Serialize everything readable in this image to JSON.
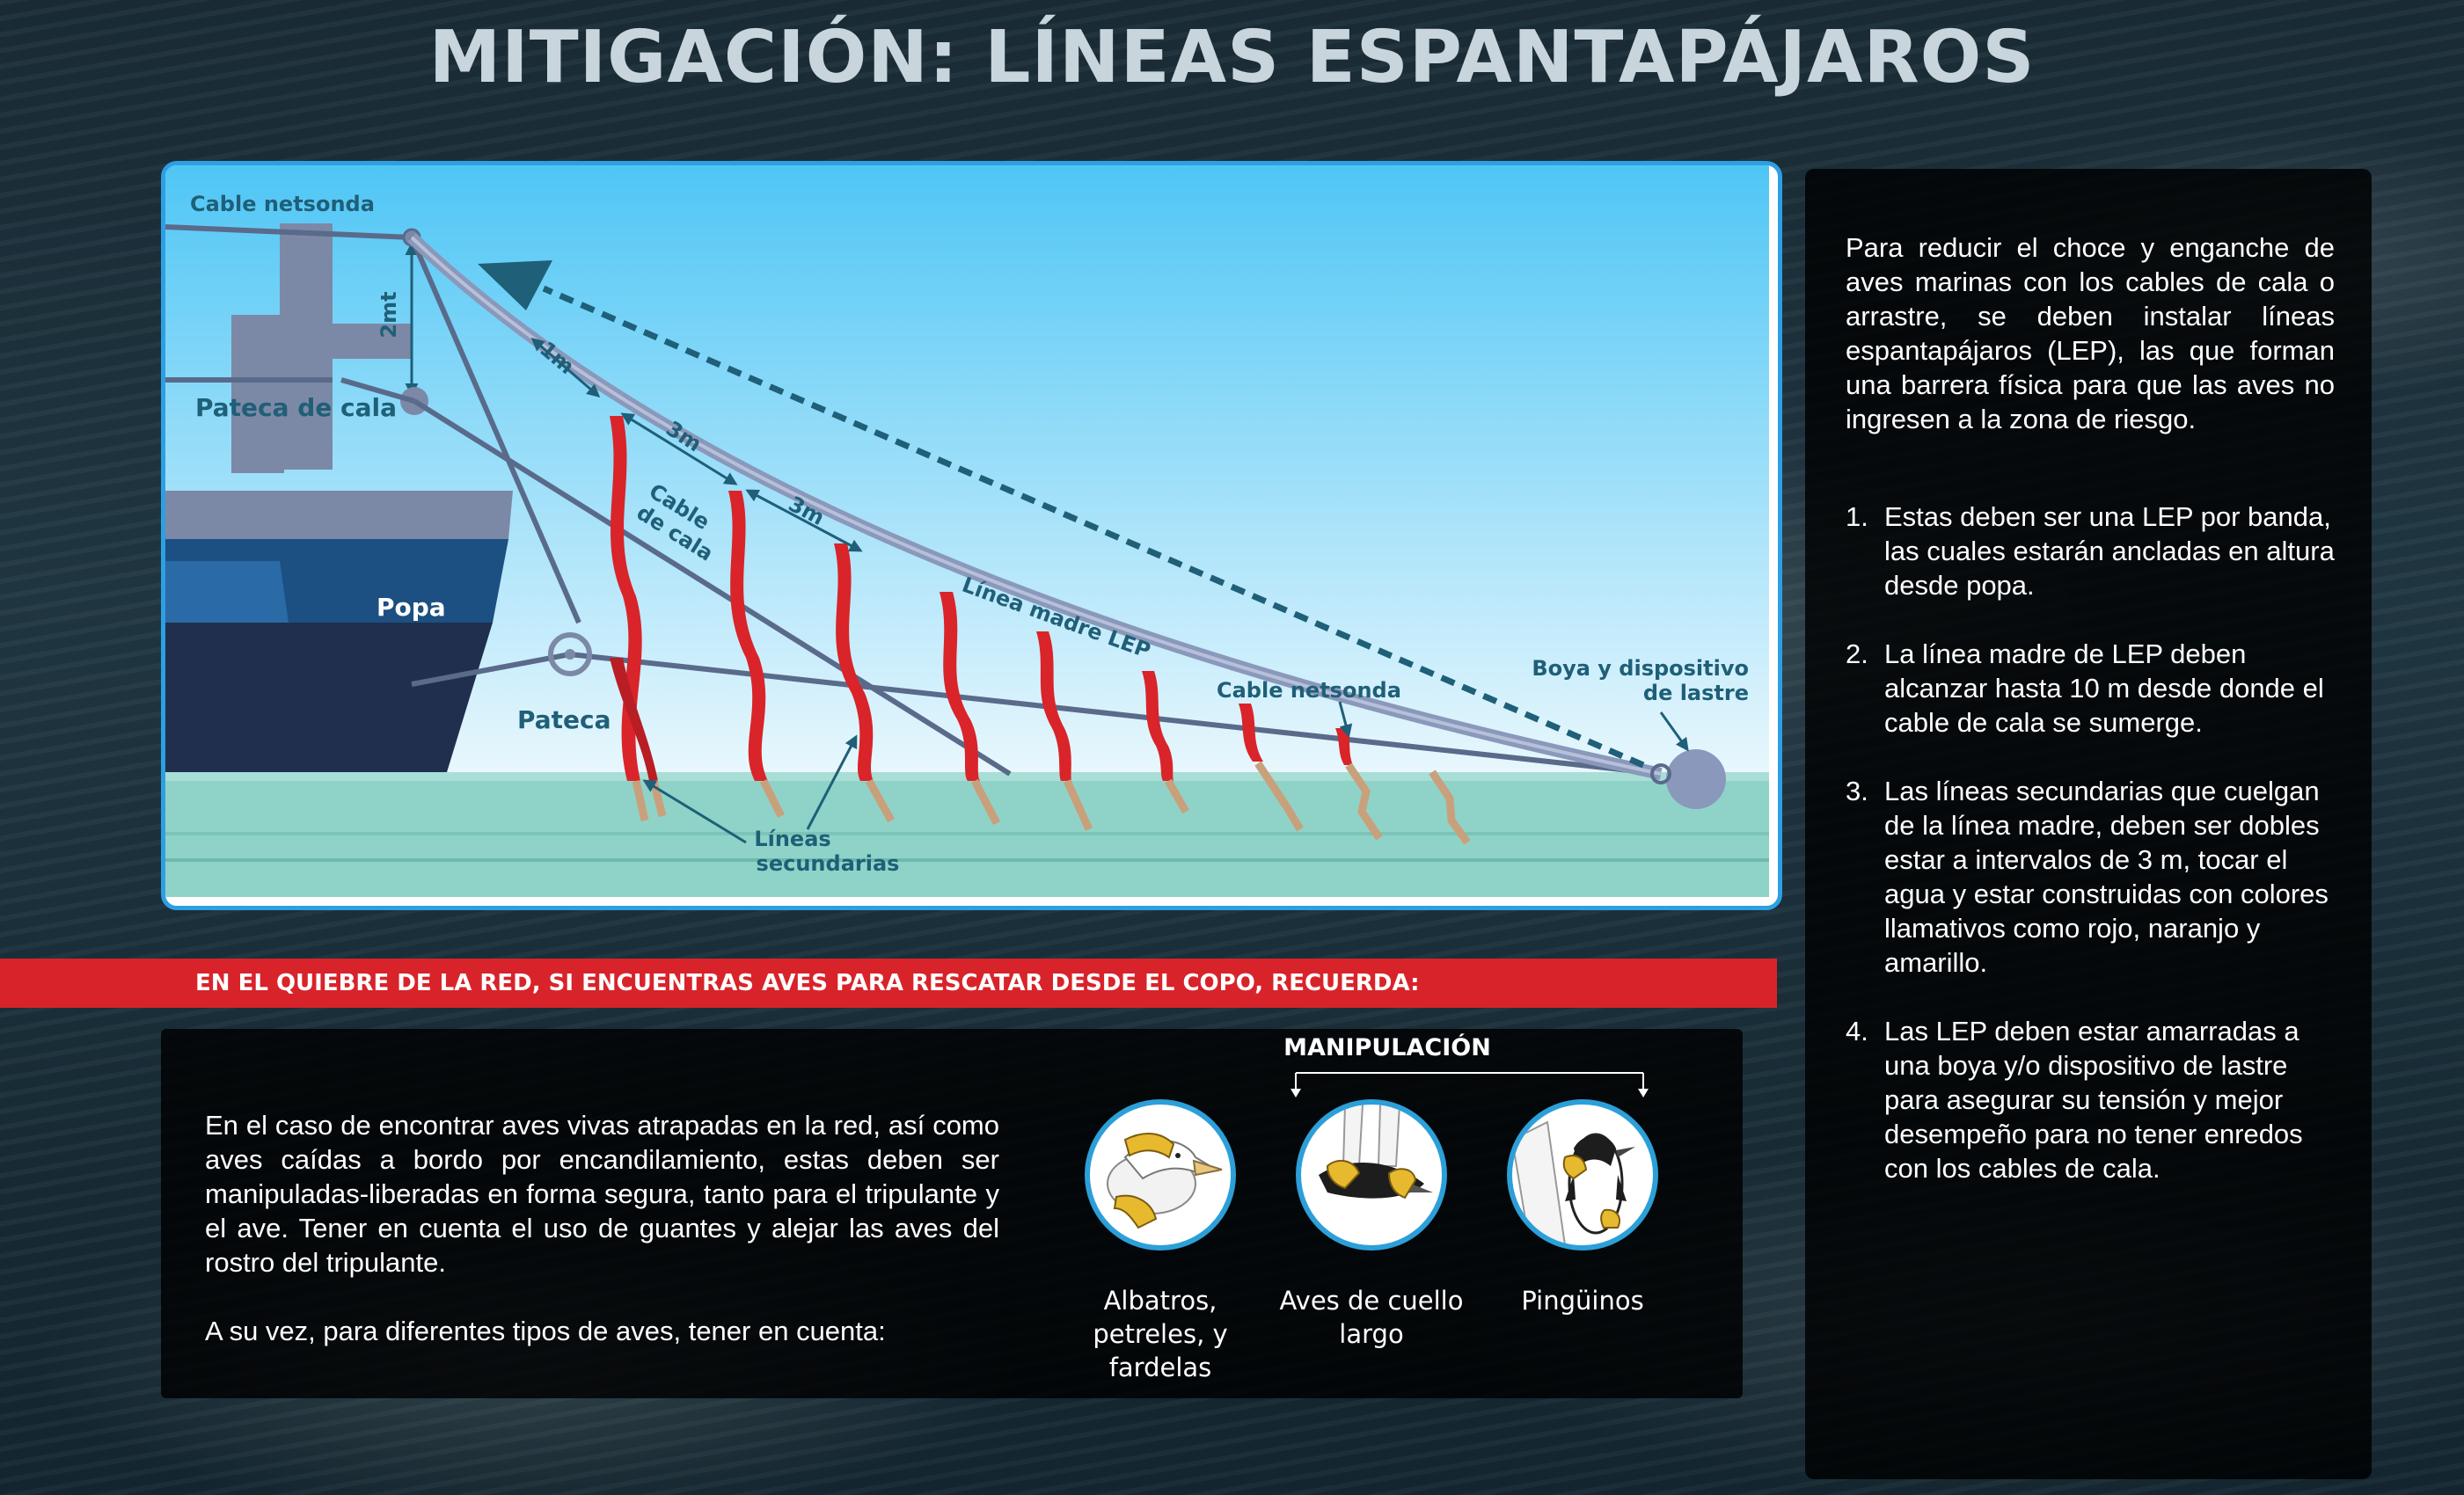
{
  "title": "MITIGACIÓN: LÍNEAS ESPANTAPÁJAROS",
  "diagram": {
    "labels": {
      "cable_netsonda_top": "Cable netsonda",
      "dim_2mt": "2mt",
      "pateca_de_cala": "Pateca de cala",
      "popa": "Popa",
      "pateca": "Pateca",
      "dim_1m": "1m",
      "dim_3m_a": "3m",
      "dim_3m_b": "3m",
      "cable_de_cala_1": "Cable",
      "cable_de_cala_2": "de cala",
      "linea_madre": "Línea madre LEP",
      "cable_netsonda_mid": "Cable netsonda",
      "boya_1": "Boya y dispositivo",
      "boya_2": "de lastre",
      "lineas_sec_1": "Líneas",
      "lineas_sec_2": "secundarias"
    },
    "colors": {
      "sky_top": "#4fc6f5",
      "sky_bottom": "#e6f6fd",
      "sea": "#8fd3c8",
      "streamer": "#d9242a",
      "mother_line": "#8a98bb",
      "hull_dark": "#1f2f4d",
      "hull_blue": "#1c4f82",
      "ship_grey": "#7c89a6",
      "label_teal": "#1f5f78"
    }
  },
  "right_panel": {
    "intro": "Para reducir el choce y enganche de aves marinas con los cables de cala o arrastre, se deben instalar líneas espantapájaros (LEP), las que forman una barrera física para que las aves no ingresen a la zona de riesgo.",
    "items": [
      {
        "num": "1.",
        "text": "Estas deben ser una LEP por banda, las cuales estarán ancladas en altura desde popa."
      },
      {
        "num": "2.",
        "text": "La línea madre de LEP deben alcanzar hasta 10 m desde donde el cable de cala se sumerge."
      },
      {
        "num": "3.",
        "text": "Las líneas secundarias que cuelgan de la línea madre, deben ser dobles estar a intervalos de 3 m, tocar el agua y estar construidas con colores llamativos como rojo, naranjo y amarillo."
      },
      {
        "num": "4.",
        "text": "Las LEP deben estar amarradas a una boya y/o dispositivo de lastre para asegurar su tensión y mejor desempeño para no tener enredos con los cables de cala."
      }
    ]
  },
  "banner": "EN EL QUIEBRE DE LA RED, SI ENCUENTRAS AVES PARA RESCATAR DESDE EL COPO, RECUERDA:",
  "bottom_panel": {
    "paragraph1": "En el caso de encontrar aves vivas atrapadas en la red, así como aves caídas a bordo por encandilamiento, estas deben ser manipuladas-liberadas en forma segura, tanto para el tripulante y el ave. Tener en cuenta el uso de guantes y alejar las aves del rostro del tripulante.",
    "paragraph2": "A su vez, para diferentes tipos de aves, tener en cuenta:",
    "manipulation_label": "MANIPULACIÓN",
    "birds": [
      {
        "caption": "Albatros, petreles, y fardelas",
        "icon": "albatross-handling-icon"
      },
      {
        "caption": "Aves de cuello largo",
        "icon": "long-neck-bird-handling-icon"
      },
      {
        "caption": "Pingüinos",
        "icon": "penguin-handling-icon"
      }
    ]
  }
}
